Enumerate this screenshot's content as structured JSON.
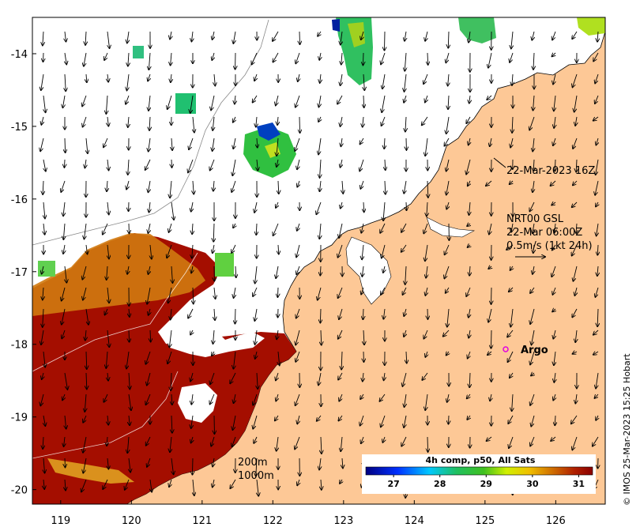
{
  "map": {
    "lon_ticks": [
      "119",
      "120",
      "121",
      "122",
      "123",
      "124",
      "125",
      "126"
    ],
    "lat_ticks": [
      "-14",
      "-15",
      "-16",
      "-17",
      "-18",
      "-19",
      "-20"
    ],
    "lon_range": [
      118.6,
      126.7
    ],
    "lat_range": [
      -20.2,
      -13.5
    ],
    "colors": {
      "land": "#fdc896",
      "sst_warm": "#a40e00",
      "ocean": "#ffffff"
    }
  },
  "annotations": {
    "time_label": "22-Mar-2023 16Z",
    "current_source": "NRT00 GSL",
    "current_time": "22-Mar 06:00Z",
    "current_scale": "0.5m/s (1kt 24h)",
    "argo_label": "Argo",
    "contour_200": "200m",
    "contour_1000": "1000m"
  },
  "colorbar": {
    "title": "4h comp, p50, All Sats",
    "ticks": [
      "27",
      "28",
      "29",
      "30",
      "31"
    ],
    "range": [
      26.4,
      31.3
    ]
  },
  "credit": "© IMOS 25-Mar-2023 15:25 Hobart"
}
